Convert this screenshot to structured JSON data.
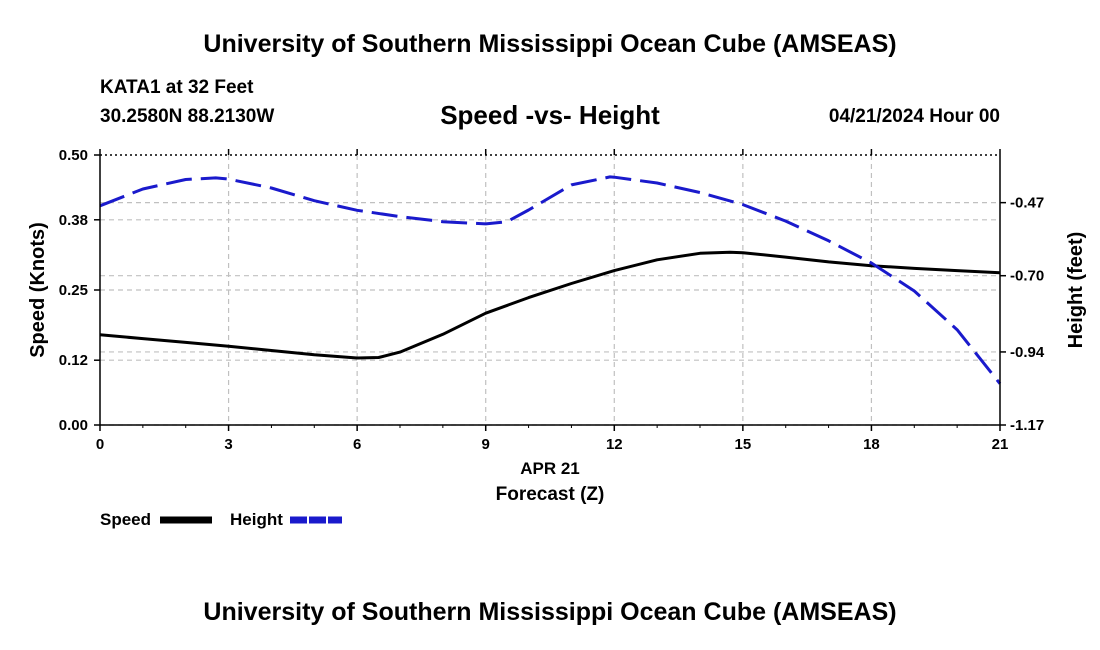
{
  "header": {
    "title_top": "University of Southern Mississippi Ocean Cube (AMSEAS)",
    "station": "KATA1 at 32 Feet",
    "coords": "30.2580N  88.2130W",
    "datetime": "04/21/2024 Hour 00",
    "title_bottom": "University of Southern Mississippi Ocean Cube (AMSEAS)"
  },
  "chart_data": {
    "type": "line",
    "title": "Speed -vs- Height",
    "xlabel": "Forecast (Z)",
    "xdate": "APR 21",
    "ylabel": "Speed (Knots)",
    "y2label": "Height (feet)",
    "xlim": [
      0,
      21
    ],
    "ylim": [
      0,
      0.5
    ],
    "y2lim": [
      -1.17,
      -0.32
    ],
    "x_ticks": [
      "0",
      "3",
      "6",
      "9",
      "12",
      "15",
      "18",
      "21"
    ],
    "y_ticks": [
      "0.00",
      "0.12",
      "0.25",
      "0.38",
      "0.50"
    ],
    "y2_ticks": [
      "-0.47",
      "-0.70",
      "-0.94",
      "-1.17"
    ],
    "grid": true,
    "series": [
      {
        "name": "Speed",
        "axis": "left",
        "color": "#000000",
        "style": "solid",
        "x": [
          0,
          1,
          2,
          3,
          4,
          5,
          6,
          6.5,
          7,
          8,
          9,
          10,
          11,
          12,
          13,
          14,
          14.7,
          15,
          16,
          17,
          18,
          19,
          20,
          21
        ],
        "values": [
          0.167,
          0.16,
          0.153,
          0.146,
          0.138,
          0.13,
          0.124,
          0.125,
          0.135,
          0.168,
          0.207,
          0.236,
          0.262,
          0.286,
          0.306,
          0.318,
          0.32,
          0.319,
          0.311,
          0.302,
          0.295,
          0.29,
          0.286,
          0.282
        ]
      },
      {
        "name": "Height",
        "axis": "right",
        "color": "#1a1acc",
        "style": "dashed",
        "x": [
          0,
          1,
          2,
          2.7,
          3,
          4,
          5,
          6,
          7,
          8,
          9,
          9.5,
          10,
          11,
          11.9,
          12,
          13,
          14,
          15,
          16,
          17,
          18,
          19,
          20,
          21
        ],
        "values": [
          -0.48,
          -0.427,
          -0.397,
          -0.392,
          -0.396,
          -0.424,
          -0.464,
          -0.494,
          -0.514,
          -0.53,
          -0.537,
          -0.53,
          -0.493,
          -0.414,
          -0.389,
          -0.39,
          -0.408,
          -0.438,
          -0.476,
          -0.528,
          -0.59,
          -0.66,
          -0.748,
          -0.87,
          -1.04
        ]
      }
    ],
    "legend": {
      "position": "bottom-left",
      "items": [
        {
          "label": "Speed",
          "color": "#000000",
          "style": "solid"
        },
        {
          "label": "Height",
          "color": "#1a1acc",
          "style": "dashed"
        }
      ]
    }
  }
}
